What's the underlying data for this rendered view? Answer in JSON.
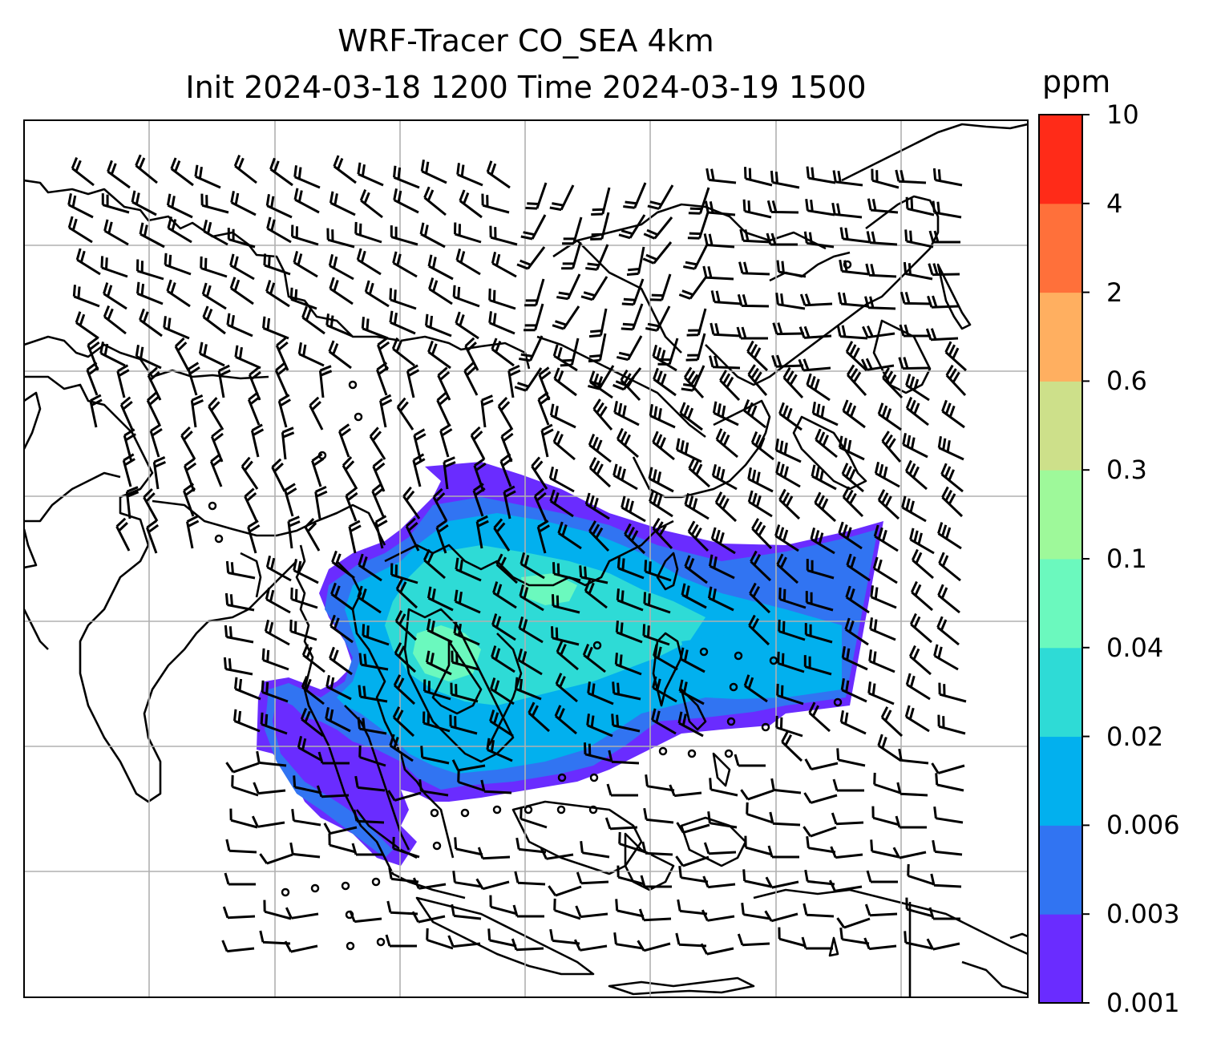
{
  "title": {
    "line1": "WRF-Tracer CO_SEA 4km",
    "line2": "Init 2024-03-18 1200 Time 2024-03-19 1500"
  },
  "colorbar": {
    "unit": "ppm",
    "levels": [
      "0.001",
      "0.003",
      "0.006",
      "0.02",
      "0.04",
      "0.1",
      "0.3",
      "0.6",
      "2",
      "4",
      "10"
    ],
    "colors": [
      "#6a2cff",
      "#3174f2",
      "#02b0ee",
      "#2edbd6",
      "#6bf9be",
      "#9ef99a",
      "#cde08a",
      "#ffaf60",
      "#ff703a",
      "#ff2b18"
    ]
  },
  "map": {
    "gridlines": true,
    "wind_barbs": true,
    "tracer_field": "CO_SEA"
  }
}
